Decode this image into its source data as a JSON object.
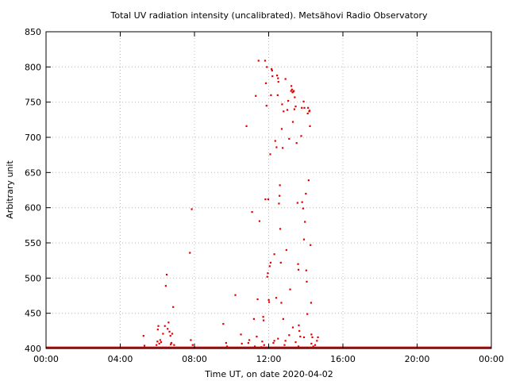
{
  "chart_data": {
    "type": "scatter",
    "title": "Total UV radiation intensity (uncalibrated). Metsähovi Radio Observatory",
    "xlabel": "Time UT, on date 2020-04-02",
    "ylabel": "Arbitrary unit",
    "xlim": [
      0,
      24
    ],
    "ylim": [
      400,
      850
    ],
    "x_ticks": [
      0,
      4,
      8,
      12,
      16,
      20,
      24
    ],
    "x_tick_labels": [
      "00:00",
      "04:00",
      "08:00",
      "12:00",
      "16:00",
      "20:00",
      "00:00"
    ],
    "y_ticks": [
      400,
      450,
      500,
      550,
      600,
      650,
      700,
      750,
      800,
      850
    ],
    "y_tick_labels": [
      "400",
      "450",
      "500",
      "550",
      "600",
      "650",
      "700",
      "750",
      "800",
      "850"
    ],
    "grid": true,
    "point_color": "#e00000",
    "baseline": {
      "y": 401,
      "x_range": [
        0,
        24
      ],
      "description_values_note": ""
    },
    "series": [
      {
        "name": "",
        "points": [
          [
            5.25,
            418
          ],
          [
            5.3,
            404
          ],
          [
            5.95,
            405
          ],
          [
            6.0,
            410
          ],
          [
            6.02,
            427
          ],
          [
            6.05,
            432
          ],
          [
            6.1,
            407
          ],
          [
            6.15,
            412
          ],
          [
            6.2,
            409
          ],
          [
            6.3,
            421
          ],
          [
            6.4,
            432
          ],
          [
            6.45,
            489
          ],
          [
            6.5,
            505
          ],
          [
            6.55,
            428
          ],
          [
            6.6,
            437
          ],
          [
            6.65,
            424
          ],
          [
            6.7,
            418
          ],
          [
            6.72,
            406
          ],
          [
            6.75,
            408
          ],
          [
            6.8,
            421
          ],
          [
            6.85,
            459
          ],
          [
            6.9,
            405
          ],
          [
            7.75,
            536
          ],
          [
            7.8,
            412
          ],
          [
            7.85,
            598
          ],
          [
            7.9,
            405
          ],
          [
            9.55,
            435
          ],
          [
            9.7,
            408
          ],
          [
            9.75,
            403
          ],
          [
            10.2,
            476
          ],
          [
            10.5,
            420
          ],
          [
            10.55,
            407
          ],
          [
            10.8,
            716
          ],
          [
            10.9,
            408
          ],
          [
            10.95,
            412
          ],
          [
            11.1,
            594
          ],
          [
            11.2,
            442
          ],
          [
            11.25,
            403
          ],
          [
            11.3,
            759
          ],
          [
            11.35,
            417
          ],
          [
            11.4,
            470
          ],
          [
            11.45,
            809
          ],
          [
            11.5,
            581
          ],
          [
            11.6,
            402
          ],
          [
            11.65,
            410
          ],
          [
            11.7,
            445
          ],
          [
            11.72,
            440
          ],
          [
            11.75,
            405
          ],
          [
            11.8,
            809
          ],
          [
            11.82,
            612
          ],
          [
            11.85,
            777
          ],
          [
            11.88,
            745
          ],
          [
            11.9,
            800
          ],
          [
            11.92,
            502
          ],
          [
            11.95,
            507
          ],
          [
            11.97,
            612
          ],
          [
            12.0,
            469
          ],
          [
            12.02,
            466
          ],
          [
            12.05,
            517
          ],
          [
            12.08,
            676
          ],
          [
            12.1,
            522
          ],
          [
            12.12,
            760
          ],
          [
            12.15,
            797
          ],
          [
            12.18,
            795
          ],
          [
            12.2,
            787
          ],
          [
            12.25,
            408
          ],
          [
            12.3,
            534
          ],
          [
            12.35,
            695
          ],
          [
            12.4,
            472
          ],
          [
            12.42,
            686
          ],
          [
            12.45,
            788
          ],
          [
            12.48,
            760
          ],
          [
            12.5,
            784
          ],
          [
            12.52,
            779
          ],
          [
            12.55,
            606
          ],
          [
            12.58,
            617
          ],
          [
            12.6,
            632
          ],
          [
            12.62,
            570
          ],
          [
            12.65,
            522
          ],
          [
            12.68,
            465
          ],
          [
            12.7,
            712
          ],
          [
            12.72,
            747
          ],
          [
            12.75,
            685
          ],
          [
            12.78,
            442
          ],
          [
            12.8,
            737
          ],
          [
            12.85,
            405
          ],
          [
            12.9,
            783
          ],
          [
            12.95,
            540
          ],
          [
            13.0,
            739
          ],
          [
            13.05,
            752
          ],
          [
            13.1,
            698
          ],
          [
            13.15,
            484
          ],
          [
            13.2,
            766
          ],
          [
            13.22,
            773
          ],
          [
            13.25,
            768
          ],
          [
            13.28,
            764
          ],
          [
            13.3,
            722
          ],
          [
            13.32,
            765
          ],
          [
            13.35,
            766
          ],
          [
            13.38,
            740
          ],
          [
            13.4,
            757
          ],
          [
            13.45,
            744
          ],
          [
            13.5,
            692
          ],
          [
            13.55,
            607
          ],
          [
            13.58,
            520
          ],
          [
            13.6,
            512
          ],
          [
            13.62,
            433
          ],
          [
            13.65,
            425
          ],
          [
            13.7,
            417
          ],
          [
            13.75,
            702
          ],
          [
            13.78,
            742
          ],
          [
            13.8,
            608
          ],
          [
            13.85,
            599
          ],
          [
            13.88,
            751
          ],
          [
            13.9,
            555
          ],
          [
            13.92,
            742
          ],
          [
            13.95,
            580
          ],
          [
            14.0,
            620
          ],
          [
            14.02,
            511
          ],
          [
            14.05,
            495
          ],
          [
            14.08,
            449
          ],
          [
            14.1,
            734
          ],
          [
            14.12,
            742
          ],
          [
            14.15,
            639
          ],
          [
            14.18,
            737
          ],
          [
            14.2,
            738
          ],
          [
            14.22,
            716
          ],
          [
            14.25,
            547
          ],
          [
            14.28,
            465
          ],
          [
            14.3,
            420
          ],
          [
            14.35,
            416
          ],
          [
            14.4,
            403
          ],
          [
            14.5,
            405
          ],
          [
            14.6,
            411
          ],
          [
            14.65,
            416
          ],
          [
            12.3,
            411
          ],
          [
            12.5,
            414
          ],
          [
            12.9,
            411
          ],
          [
            13.1,
            419
          ],
          [
            13.3,
            430
          ],
          [
            13.45,
            409
          ],
          [
            13.6,
            403
          ],
          [
            13.9,
            416
          ],
          [
            14.3,
            407
          ]
        ]
      }
    ]
  }
}
